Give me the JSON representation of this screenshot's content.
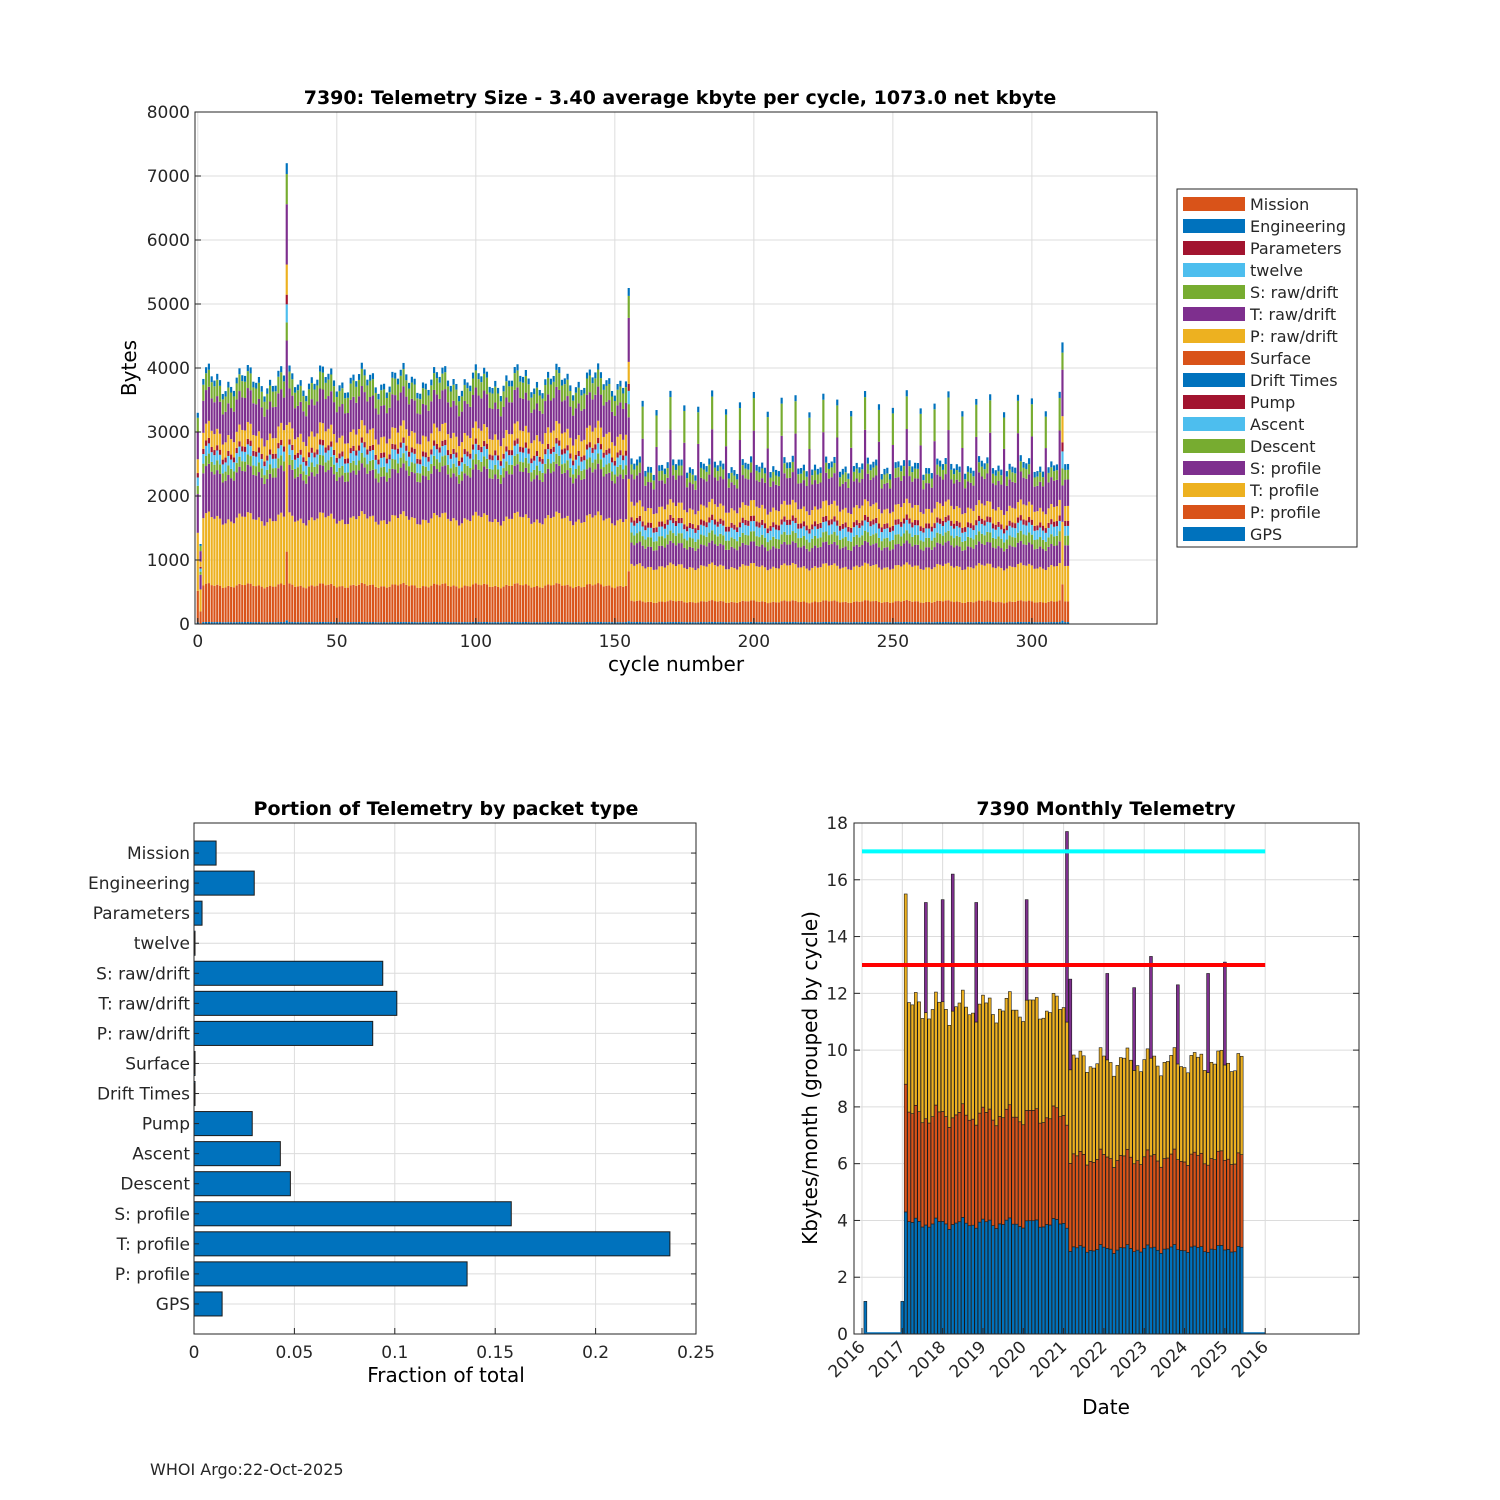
{
  "footer": "WHOI Argo:22-Oct-2025",
  "colors": {
    "blue": "#0072bd",
    "orange": "#d95319",
    "yellow": "#edb120",
    "purple": "#7e2f8e",
    "green": "#77ac30",
    "cyan": "#4dbeee",
    "maroon": "#a2142f",
    "ref_high": "#00ffff",
    "ref_low": "#ff0000",
    "grid": "#dcdcdc",
    "axis": "#262626"
  },
  "chart_data": [
    {
      "id": "telemetry-size",
      "type": "bar",
      "stacked": true,
      "title": "7390: Telemetry Size - 3.40 average kbyte per cycle, 1073.0 net kbyte",
      "xlabel": "cycle number",
      "ylabel": "Bytes",
      "xlim": [
        -1,
        345
      ],
      "ylim": [
        0,
        8000
      ],
      "xticks": [
        0,
        50,
        100,
        150,
        200,
        250,
        300
      ],
      "yticks": [
        0,
        1000,
        2000,
        3000,
        4000,
        5000,
        6000,
        7000,
        8000
      ],
      "grid": true,
      "legend_position": "right",
      "legend": [
        "Mission",
        "Engineering",
        "Parameters",
        "twelve",
        "S: raw/drift",
        "T: raw/drift",
        "P: raw/drift",
        "Surface",
        "Drift Times",
        "Pump",
        "Ascent",
        "Descent",
        "S: profile",
        "T: profile",
        "P: profile",
        "GPS"
      ],
      "legend_colors": [
        "#d95319",
        "#0072bd",
        "#a2142f",
        "#4dbeee",
        "#77ac30",
        "#7e2f8e",
        "#edb120",
        "#d95319",
        "#0072bd",
        "#a2142f",
        "#4dbeee",
        "#77ac30",
        "#7e2f8e",
        "#edb120",
        "#d95319",
        "#0072bd"
      ],
      "cycles": [
        0,
        313
      ],
      "segments_bottom_to_top": [
        "GPS",
        "P: profile",
        "T: profile",
        "S: profile",
        "Descent",
        "Ascent",
        "Pump",
        "P: raw/drift",
        "T: raw/drift",
        "S: raw/drift",
        "Engineering"
      ],
      "typical_cycle_1_155": [
        30,
        570,
        1050,
        700,
        150,
        150,
        80,
        250,
        500,
        250,
        90
      ],
      "typical_cycle_156_313": [
        30,
        320,
        550,
        320,
        150,
        150,
        80,
        230,
        410,
        150,
        90
      ],
      "notable_totals": [
        {
          "cycle": 0,
          "bytes": 3300
        },
        {
          "cycle": 1,
          "bytes": 1250
        },
        {
          "cycle": 32,
          "bytes": 7200
        },
        {
          "cycle": 155,
          "bytes": 5250
        },
        {
          "cycle": 311,
          "bytes": 4400
        }
      ]
    },
    {
      "id": "portion-by-packet",
      "type": "bar",
      "orientation": "horizontal",
      "title": "Portion of Telemetry by packet type",
      "xlabel": "Fraction of total",
      "ylabel": "",
      "xlim": [
        0,
        0.25
      ],
      "xticks": [
        0,
        0.05,
        0.1,
        0.15,
        0.2,
        0.25
      ],
      "xtick_labels": [
        "0",
        "0.05",
        "0.1",
        "0.15",
        "0.2",
        "0.25"
      ],
      "grid": true,
      "categories": [
        "Mission",
        "Engineering",
        "Parameters",
        "twelve",
        "S: raw/drift",
        "T: raw/drift",
        "P: raw/drift",
        "Surface",
        "Drift Times",
        "Pump",
        "Ascent",
        "Descent",
        "S: profile",
        "T: profile",
        "P: profile",
        "GPS"
      ],
      "values": [
        0.011,
        0.03,
        0.004,
        0.0005,
        0.094,
        0.101,
        0.089,
        0.0005,
        0.0005,
        0.029,
        0.043,
        0.048,
        0.158,
        0.237,
        0.136,
        0.014
      ]
    },
    {
      "id": "monthly-telemetry",
      "type": "bar",
      "stacked": true,
      "title": "7390 Monthly Telemetry",
      "xlabel": "Date",
      "ylabel": "Kbytes/month (grouped by cycle)",
      "ylim": [
        0,
        18
      ],
      "yticks": [
        0,
        2,
        4,
        6,
        8,
        10,
        12,
        14,
        16,
        18
      ],
      "xtick_labels": [
        "2016",
        "2017",
        "2018",
        "2019",
        "2020",
        "2021",
        "2022",
        "2023",
        "2024",
        "2025",
        "2016"
      ],
      "grid": true,
      "reference_lines": [
        {
          "y": 17,
          "color": "#00ffff"
        },
        {
          "y": 13,
          "color": "#ff0000"
        }
      ],
      "segment_colors_bottom_to_top": [
        "#0072bd",
        "#d95319",
        "#edb120",
        "#7e2f8e"
      ],
      "early_bars": [
        {
          "month": 1,
          "values": [
            1.15,
            0,
            0,
            0
          ]
        },
        {
          "month": 12,
          "values": [
            1.15,
            0,
            0,
            0
          ]
        },
        {
          "month": 13,
          "values": [
            4.3,
            4.5,
            6.7,
            0
          ]
        }
      ],
      "typical_2017_2020": [
        3.9,
        3.8,
        3.8,
        0
      ],
      "typical_2021_2025": [
        3.0,
        3.2,
        3.4,
        0
      ],
      "spikes": [
        {
          "month": 19,
          "total": 15.2
        },
        {
          "month": 24,
          "total": 15.3
        },
        {
          "month": 27,
          "total": 16.2
        },
        {
          "month": 34,
          "total": 15.2
        },
        {
          "month": 49,
          "total": 15.3
        },
        {
          "month": 61,
          "total": 17.7
        },
        {
          "month": 62,
          "total": 12.5
        },
        {
          "month": 73,
          "total": 12.7
        },
        {
          "month": 81,
          "total": 12.2
        },
        {
          "month": 86,
          "total": 13.3
        },
        {
          "month": 94,
          "total": 12.3
        },
        {
          "month": 103,
          "total": 12.7
        },
        {
          "month": 108,
          "total": 13.1
        }
      ],
      "last_month": 113
    }
  ]
}
